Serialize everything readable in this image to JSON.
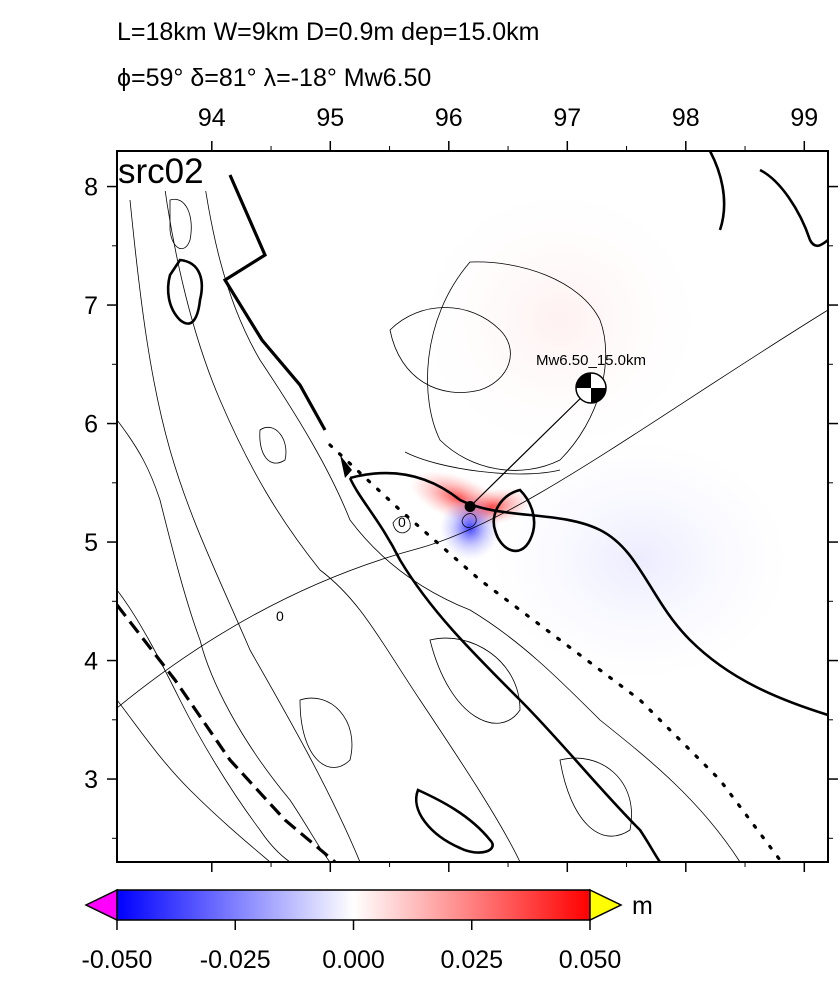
{
  "header": {
    "line1": "L=18km W=9km D=0.9m dep=15.0km",
    "line2": "ϕ=59° δ=81° λ=-18° Mw6.50"
  },
  "map": {
    "panel_label": "src02",
    "x_ticks": [
      "94",
      "95",
      "96",
      "97",
      "98",
      "99"
    ],
    "y_ticks": [
      "8",
      "7",
      "6",
      "5",
      "4",
      "3"
    ],
    "lon_range": [
      93.2,
      99.2
    ],
    "lat_range": [
      2.3,
      8.3
    ],
    "epicenter": {
      "lon": 96.18,
      "lat": 5.3
    },
    "beachball": {
      "lon": 97.2,
      "lat": 6.3,
      "label": "Mw6.50_15.0km"
    },
    "contour_labels": [
      "0",
      "0"
    ]
  },
  "colorbar": {
    "unit": "m",
    "ticks": [
      "-0.050",
      "-0.025",
      "0.000",
      "0.025",
      "0.050"
    ],
    "range": [
      -0.05,
      0.05
    ],
    "colors": {
      "low": "#0000ff",
      "mid": "#ffffff",
      "high": "#ff0000",
      "below": "#ff00ff",
      "above": "#ffff00"
    }
  }
}
